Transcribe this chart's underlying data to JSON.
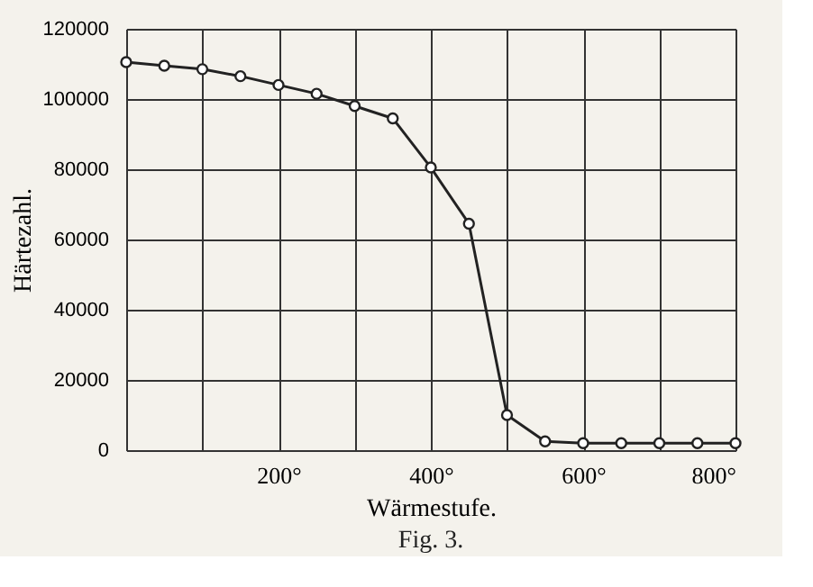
{
  "chart_data": {
    "type": "line",
    "xlabel": "Wärmestufe.",
    "ylabel": "Härtezahl.",
    "x": [
      0,
      50,
      100,
      150,
      200,
      250,
      300,
      350,
      400,
      450,
      500,
      550,
      600,
      650,
      700,
      750,
      800
    ],
    "series": [
      {
        "color": "#222222",
        "values": [
          110500,
          109500,
          108500,
          106500,
          104000,
          101500,
          98000,
          94500,
          80500,
          64500,
          10000,
          2500,
          2000,
          2000,
          2000,
          2000,
          2000
        ]
      }
    ],
    "xlim": [
      0,
      800
    ],
    "xticks": [
      {
        "value": 0,
        "label": null
      },
      {
        "value": 100,
        "label": null
      },
      {
        "value": 200,
        "label": "200°"
      },
      {
        "value": 300,
        "label": null
      },
      {
        "value": 400,
        "label": "400°"
      },
      {
        "value": 500,
        "label": null
      },
      {
        "value": 600,
        "label": "600°"
      },
      {
        "value": 700,
        "label": null
      },
      {
        "value": 800,
        "label": "800°"
      }
    ],
    "ylim": [
      0,
      120000
    ],
    "yticks": [
      0,
      20000,
      40000,
      60000,
      80000,
      100000,
      120000
    ],
    "grid": true,
    "marker": "circle",
    "line_style": "solid",
    "annotations": [
      "Fig. 3."
    ]
  }
}
